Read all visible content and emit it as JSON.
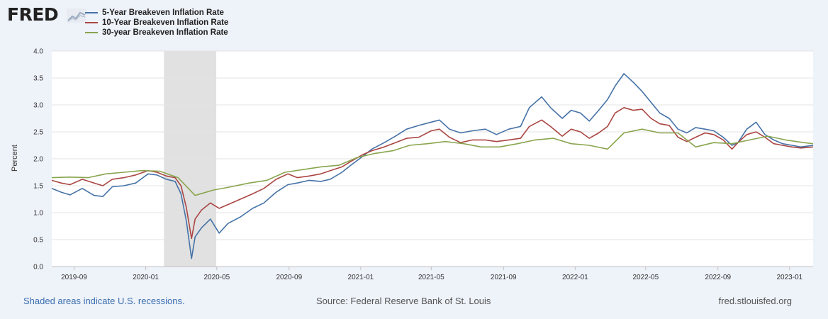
{
  "header": {
    "logo_text": "FRED",
    "logo_icon": "line-chart-icon"
  },
  "legend": [
    {
      "label": "5-Year Breakeven Inflation Rate",
      "color": "#4572a7"
    },
    {
      "label": "10-Year Breakeven Inflation Rate",
      "color": "#aa4643"
    },
    {
      "label": "30-year Breakeven Inflation Rate",
      "color": "#89a54e"
    }
  ],
  "footer": {
    "note": "Shaded areas indicate U.S. recessions.",
    "source": "Source: Federal Reserve Bank of St. Louis",
    "url": "fred.stlouisfed.org"
  },
  "chart_data": {
    "type": "line",
    "title": "",
    "xlabel": "",
    "ylabel": "Percent",
    "ylim": [
      0,
      4
    ],
    "yticks": [
      "0.0",
      "0.5",
      "1.0",
      "1.5",
      "2.0",
      "2.5",
      "3.0",
      "3.5",
      "4.0"
    ],
    "xlim": [
      "2019-07-25",
      "2023-02-10"
    ],
    "xticks": [
      "2019-09",
      "2020-01",
      "2020-05",
      "2020-09",
      "2021-01",
      "2021-05",
      "2021-09",
      "2022-01",
      "2022-05",
      "2022-09",
      "2023-01"
    ],
    "grid": true,
    "recession_shading": [
      [
        "2020-02-01",
        "2020-04-30"
      ]
    ],
    "series": [
      {
        "name": "5-Year Breakeven Inflation Rate",
        "color": "#4572a7",
        "points": [
          [
            "2019-07-25",
            1.45
          ],
          [
            "2019-08-10",
            1.38
          ],
          [
            "2019-08-25",
            1.33
          ],
          [
            "2019-09-15",
            1.45
          ],
          [
            "2019-10-05",
            1.32
          ],
          [
            "2019-10-20",
            1.3
          ],
          [
            "2019-11-05",
            1.48
          ],
          [
            "2019-11-25",
            1.5
          ],
          [
            "2019-12-15",
            1.55
          ],
          [
            "2020-01-05",
            1.72
          ],
          [
            "2020-01-20",
            1.7
          ],
          [
            "2020-02-05",
            1.62
          ],
          [
            "2020-02-20",
            1.58
          ],
          [
            "2020-03-01",
            1.35
          ],
          [
            "2020-03-10",
            0.85
          ],
          [
            "2020-03-19",
            0.15
          ],
          [
            "2020-03-25",
            0.55
          ],
          [
            "2020-04-05",
            0.72
          ],
          [
            "2020-04-20",
            0.88
          ],
          [
            "2020-05-05",
            0.62
          ],
          [
            "2020-05-20",
            0.8
          ],
          [
            "2020-06-10",
            0.92
          ],
          [
            "2020-07-01",
            1.08
          ],
          [
            "2020-07-20",
            1.18
          ],
          [
            "2020-08-10",
            1.38
          ],
          [
            "2020-08-30",
            1.52
          ],
          [
            "2020-09-15",
            1.55
          ],
          [
            "2020-10-05",
            1.6
          ],
          [
            "2020-10-25",
            1.58
          ],
          [
            "2020-11-10",
            1.62
          ],
          [
            "2020-11-30",
            1.75
          ],
          [
            "2020-12-15",
            1.88
          ],
          [
            "2021-01-05",
            2.05
          ],
          [
            "2021-01-20",
            2.18
          ],
          [
            "2021-02-10",
            2.3
          ],
          [
            "2021-03-01",
            2.42
          ],
          [
            "2021-03-20",
            2.55
          ],
          [
            "2021-04-10",
            2.62
          ],
          [
            "2021-05-01",
            2.68
          ],
          [
            "2021-05-15",
            2.72
          ],
          [
            "2021-06-01",
            2.55
          ],
          [
            "2021-06-20",
            2.48
          ],
          [
            "2021-07-10",
            2.52
          ],
          [
            "2021-08-01",
            2.55
          ],
          [
            "2021-08-20",
            2.45
          ],
          [
            "2021-09-10",
            2.55
          ],
          [
            "2021-09-30",
            2.6
          ],
          [
            "2021-10-15",
            2.95
          ],
          [
            "2021-11-05",
            3.15
          ],
          [
            "2021-11-20",
            2.95
          ],
          [
            "2021-12-10",
            2.75
          ],
          [
            "2021-12-25",
            2.9
          ],
          [
            "2022-01-10",
            2.85
          ],
          [
            "2022-01-25",
            2.7
          ],
          [
            "2022-02-10",
            2.9
          ],
          [
            "2022-02-25",
            3.1
          ],
          [
            "2022-03-10",
            3.35
          ],
          [
            "2022-03-25",
            3.58
          ],
          [
            "2022-04-10",
            3.42
          ],
          [
            "2022-04-25",
            3.25
          ],
          [
            "2022-05-10",
            3.05
          ],
          [
            "2022-05-25",
            2.85
          ],
          [
            "2022-06-10",
            2.75
          ],
          [
            "2022-06-25",
            2.55
          ],
          [
            "2022-07-10",
            2.48
          ],
          [
            "2022-07-25",
            2.58
          ],
          [
            "2022-08-10",
            2.55
          ],
          [
            "2022-08-25",
            2.52
          ],
          [
            "2022-09-10",
            2.4
          ],
          [
            "2022-09-25",
            2.25
          ],
          [
            "2022-10-05",
            2.3
          ],
          [
            "2022-10-20",
            2.55
          ],
          [
            "2022-11-05",
            2.68
          ],
          [
            "2022-11-20",
            2.45
          ],
          [
            "2022-12-05",
            2.35
          ],
          [
            "2022-12-20",
            2.28
          ],
          [
            "2023-01-05",
            2.25
          ],
          [
            "2023-01-20",
            2.22
          ],
          [
            "2023-02-10",
            2.25
          ]
        ]
      },
      {
        "name": "10-Year Breakeven Inflation Rate",
        "color": "#aa4643",
        "points": [
          [
            "2019-07-25",
            1.6
          ],
          [
            "2019-08-10",
            1.55
          ],
          [
            "2019-08-25",
            1.52
          ],
          [
            "2019-09-15",
            1.62
          ],
          [
            "2019-10-05",
            1.55
          ],
          [
            "2019-10-20",
            1.5
          ],
          [
            "2019-11-05",
            1.62
          ],
          [
            "2019-11-25",
            1.65
          ],
          [
            "2019-12-15",
            1.7
          ],
          [
            "2020-01-05",
            1.78
          ],
          [
            "2020-01-20",
            1.75
          ],
          [
            "2020-02-05",
            1.68
          ],
          [
            "2020-02-20",
            1.65
          ],
          [
            "2020-03-01",
            1.5
          ],
          [
            "2020-03-10",
            1.1
          ],
          [
            "2020-03-19",
            0.52
          ],
          [
            "2020-03-25",
            0.88
          ],
          [
            "2020-04-05",
            1.05
          ],
          [
            "2020-04-20",
            1.18
          ],
          [
            "2020-05-05",
            1.08
          ],
          [
            "2020-05-20",
            1.15
          ],
          [
            "2020-06-10",
            1.25
          ],
          [
            "2020-07-01",
            1.35
          ],
          [
            "2020-07-20",
            1.45
          ],
          [
            "2020-08-10",
            1.62
          ],
          [
            "2020-08-30",
            1.72
          ],
          [
            "2020-09-15",
            1.65
          ],
          [
            "2020-10-05",
            1.68
          ],
          [
            "2020-10-25",
            1.72
          ],
          [
            "2020-11-10",
            1.78
          ],
          [
            "2020-11-30",
            1.85
          ],
          [
            "2020-12-15",
            1.95
          ],
          [
            "2021-01-05",
            2.08
          ],
          [
            "2021-01-20",
            2.15
          ],
          [
            "2021-02-10",
            2.22
          ],
          [
            "2021-03-01",
            2.3
          ],
          [
            "2021-03-20",
            2.38
          ],
          [
            "2021-04-10",
            2.4
          ],
          [
            "2021-05-01",
            2.52
          ],
          [
            "2021-05-15",
            2.55
          ],
          [
            "2021-06-01",
            2.4
          ],
          [
            "2021-06-20",
            2.3
          ],
          [
            "2021-07-10",
            2.35
          ],
          [
            "2021-08-01",
            2.35
          ],
          [
            "2021-08-20",
            2.32
          ],
          [
            "2021-09-10",
            2.35
          ],
          [
            "2021-09-30",
            2.38
          ],
          [
            "2021-10-15",
            2.6
          ],
          [
            "2021-11-05",
            2.72
          ],
          [
            "2021-11-20",
            2.6
          ],
          [
            "2021-12-10",
            2.42
          ],
          [
            "2021-12-25",
            2.55
          ],
          [
            "2022-01-10",
            2.5
          ],
          [
            "2022-01-25",
            2.38
          ],
          [
            "2022-02-10",
            2.48
          ],
          [
            "2022-02-25",
            2.6
          ],
          [
            "2022-03-10",
            2.85
          ],
          [
            "2022-03-25",
            2.95
          ],
          [
            "2022-04-10",
            2.9
          ],
          [
            "2022-04-25",
            2.92
          ],
          [
            "2022-05-10",
            2.75
          ],
          [
            "2022-05-25",
            2.65
          ],
          [
            "2022-06-10",
            2.62
          ],
          [
            "2022-06-25",
            2.4
          ],
          [
            "2022-07-10",
            2.32
          ],
          [
            "2022-07-25",
            2.4
          ],
          [
            "2022-08-10",
            2.48
          ],
          [
            "2022-08-25",
            2.45
          ],
          [
            "2022-09-10",
            2.35
          ],
          [
            "2022-09-25",
            2.18
          ],
          [
            "2022-10-05",
            2.3
          ],
          [
            "2022-10-20",
            2.45
          ],
          [
            "2022-11-05",
            2.5
          ],
          [
            "2022-11-20",
            2.4
          ],
          [
            "2022-12-05",
            2.28
          ],
          [
            "2022-12-20",
            2.25
          ],
          [
            "2023-01-05",
            2.22
          ],
          [
            "2023-01-20",
            2.2
          ],
          [
            "2023-02-10",
            2.22
          ]
        ]
      },
      {
        "name": "30-year Breakeven Inflation Rate",
        "color": "#89a54e",
        "points": [
          [
            "2019-07-25",
            1.65
          ],
          [
            "2019-08-25",
            1.66
          ],
          [
            "2019-09-25",
            1.65
          ],
          [
            "2019-10-25",
            1.72
          ],
          [
            "2019-11-25",
            1.75
          ],
          [
            "2019-12-25",
            1.78
          ],
          [
            "2020-01-25",
            1.77
          ],
          [
            "2020-02-25",
            1.65
          ],
          [
            "2020-03-25",
            1.32
          ],
          [
            "2020-04-25",
            1.42
          ],
          [
            "2020-05-25",
            1.48
          ],
          [
            "2020-06-25",
            1.55
          ],
          [
            "2020-07-25",
            1.6
          ],
          [
            "2020-08-25",
            1.75
          ],
          [
            "2020-09-25",
            1.8
          ],
          [
            "2020-10-25",
            1.85
          ],
          [
            "2020-11-25",
            1.88
          ],
          [
            "2020-12-25",
            2.02
          ],
          [
            "2021-01-25",
            2.1
          ],
          [
            "2021-02-25",
            2.15
          ],
          [
            "2021-03-25",
            2.25
          ],
          [
            "2021-04-25",
            2.28
          ],
          [
            "2021-05-25",
            2.32
          ],
          [
            "2021-06-25",
            2.28
          ],
          [
            "2021-07-25",
            2.22
          ],
          [
            "2021-08-25",
            2.22
          ],
          [
            "2021-09-25",
            2.28
          ],
          [
            "2021-10-25",
            2.35
          ],
          [
            "2021-11-25",
            2.38
          ],
          [
            "2021-12-25",
            2.28
          ],
          [
            "2022-01-25",
            2.25
          ],
          [
            "2022-02-25",
            2.18
          ],
          [
            "2022-03-25",
            2.48
          ],
          [
            "2022-04-25",
            2.55
          ],
          [
            "2022-05-25",
            2.48
          ],
          [
            "2022-06-25",
            2.48
          ],
          [
            "2022-07-25",
            2.22
          ],
          [
            "2022-08-25",
            2.3
          ],
          [
            "2022-09-25",
            2.28
          ],
          [
            "2022-10-25",
            2.35
          ],
          [
            "2022-11-25",
            2.42
          ],
          [
            "2022-12-25",
            2.35
          ],
          [
            "2023-01-25",
            2.3
          ],
          [
            "2023-02-10",
            2.28
          ]
        ]
      }
    ]
  }
}
